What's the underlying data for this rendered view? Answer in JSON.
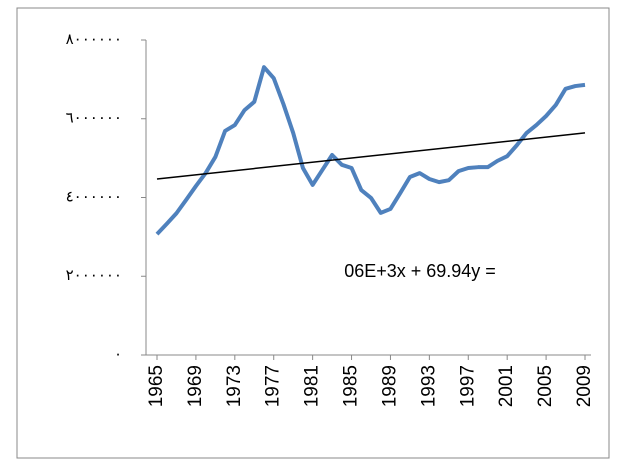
{
  "chart_data": {
    "type": "line",
    "annotation": "06E+3x + 69.94y =",
    "x": [
      1965,
      1966,
      1967,
      1968,
      1969,
      1970,
      1971,
      1972,
      1973,
      1974,
      1975,
      1976,
      1977,
      1978,
      1979,
      1980,
      1981,
      1982,
      1983,
      1984,
      1985,
      1986,
      1987,
      1988,
      1989,
      1990,
      1991,
      1992,
      1993,
      1994,
      1995,
      1996,
      1997,
      1998,
      1999,
      2000,
      2001,
      2002,
      2003,
      2004,
      2005,
      2006,
      2007,
      2008,
      2009
    ],
    "series": [
      {
        "color": "#4f81bd",
        "values": [
          3070000,
          3330000,
          3600000,
          3940000,
          4290000,
          4620000,
          5030000,
          5690000,
          5840000,
          6220000,
          6430000,
          7310000,
          7030000,
          6370000,
          5640000,
          4750000,
          4320000,
          4700000,
          5080000,
          4830000,
          4750000,
          4190000,
          3990000,
          3610000,
          3710000,
          4110000,
          4520000,
          4620000,
          4470000,
          4390000,
          4440000,
          4670000,
          4750000,
          4770000,
          4770000,
          4930000,
          5050000,
          5330000,
          5640000,
          5840000,
          6070000,
          6350000,
          6760000,
          6830000,
          6860000
        ]
      }
    ],
    "trendline": {
      "color": "#000000",
      "x": [
        1965,
        2009
      ],
      "values": [
        4470000,
        5640000
      ]
    },
    "xlim": [
      1965,
      2009
    ],
    "xticks": [
      1965,
      1969,
      1973,
      1977,
      1981,
      1985,
      1989,
      1993,
      1997,
      2001,
      2005,
      2009
    ],
    "ylim": [
      0,
      8000000
    ],
    "yticks": [
      {
        "value": 0,
        "label": "٠"
      },
      {
        "value": 2000000,
        "label": "٢٠٠٠٠٠٠"
      },
      {
        "value": 4000000,
        "label": "٤٠٠٠٠٠٠"
      },
      {
        "value": 6000000,
        "label": "٦٠٠٠٠٠٠"
      },
      {
        "value": 8000000,
        "label": "٨٠٠٠٠٠٠"
      }
    ]
  }
}
